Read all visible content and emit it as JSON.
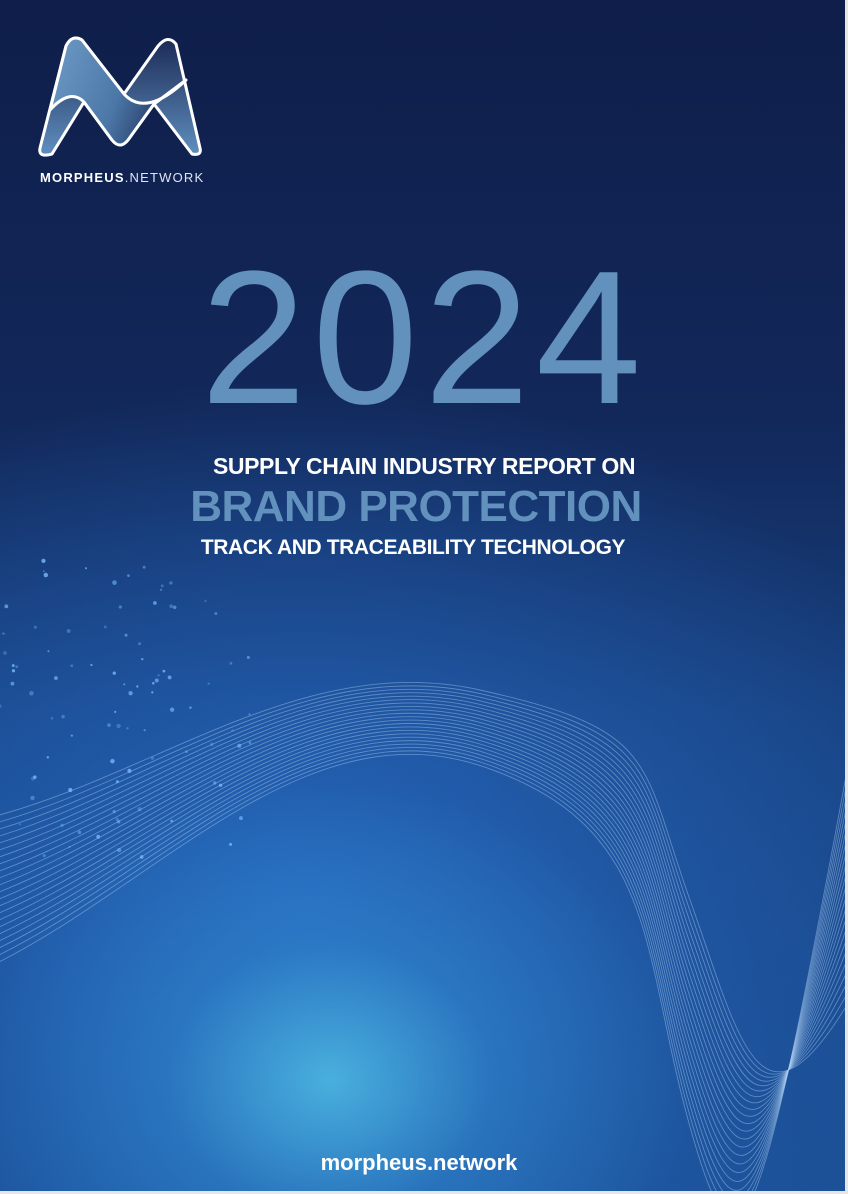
{
  "logo": {
    "brand_bold": "MORPHEUS",
    "brand_light": ".NETWORK"
  },
  "cover": {
    "year": "2024",
    "line1": "SUPPLY CHAIN INDUSTRY REPORT ON",
    "line2": "BRAND PROTECTION",
    "line3": "TRACK AND TRACEABILITY TECHNOLOGY"
  },
  "footer": {
    "url": "morpheus.network"
  },
  "colors": {
    "accent": "#6291bd",
    "background": "#0f1e4a"
  }
}
